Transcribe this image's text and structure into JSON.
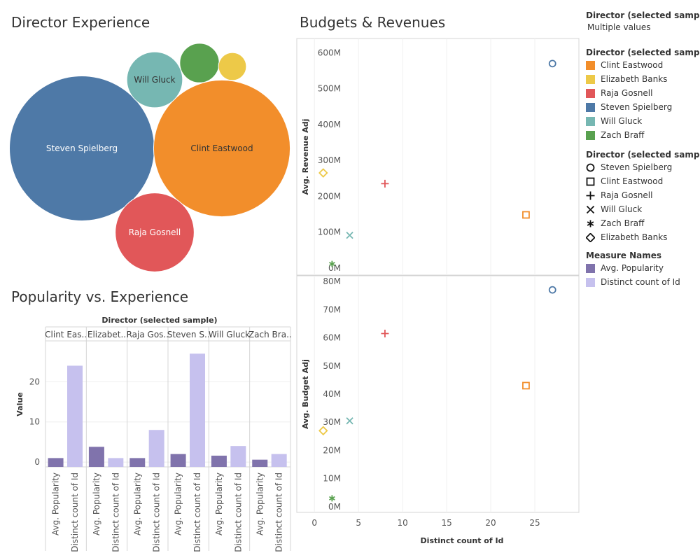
{
  "titles": {
    "bubbles": "Director Experience",
    "scatter": "Budgets & Revenues",
    "bars": "Popularity vs. Experience"
  },
  "colors": {
    "Clint Eastwood": "#F28E2B",
    "Elizabeth Banks": "#EDC948",
    "Raja Gosnell": "#E15759",
    "Steven Spielberg": "#4E79A7",
    "Will Gluck": "#76B7B2",
    "Zach Braff": "#59A14F",
    "Avg. Popularity": "#8073AC",
    "Distinct count of Id": "#C6C1EE"
  },
  "legends": {
    "filter_title": "Director (selected sample)",
    "filter_value": "Multiple values",
    "color_title": "Director (selected sample)",
    "color_items": [
      {
        "label": "Clint Eastwood",
        "color": "#F28E2B"
      },
      {
        "label": "Elizabeth Banks",
        "color": "#EDC948"
      },
      {
        "label": "Raja Gosnell",
        "color": "#E15759"
      },
      {
        "label": "Steven Spielberg",
        "color": "#4E79A7"
      },
      {
        "label": "Will Gluck",
        "color": "#76B7B2"
      },
      {
        "label": "Zach Braff",
        "color": "#59A14F"
      }
    ],
    "shape_title": "Director (selected sample)",
    "shape_items": [
      {
        "label": "Steven Spielberg",
        "shape": "circle"
      },
      {
        "label": "Clint Eastwood",
        "shape": "square"
      },
      {
        "label": "Raja Gosnell",
        "shape": "plus"
      },
      {
        "label": "Will Gluck",
        "shape": "cross"
      },
      {
        "label": "Zach Braff",
        "shape": "asterisk"
      },
      {
        "label": "Elizabeth Banks",
        "shape": "diamond"
      }
    ],
    "measure_title": "Measure Names",
    "measure_items": [
      {
        "label": "Avg. Popularity",
        "color": "#8073AC"
      },
      {
        "label": "Distinct count of Id",
        "color": "#C6C1EE"
      }
    ]
  },
  "chart_data": [
    {
      "type": "bubble",
      "title": "Director Experience",
      "measure": "Distinct count of Id",
      "bubbles": [
        {
          "name": "Steven Spielberg",
          "label": "Steven Spielberg",
          "value": 27,
          "color": "#4E79A7"
        },
        {
          "name": "Clint Eastwood",
          "label": "Clint Eastwood",
          "value": 24,
          "color": "#F28E2B"
        },
        {
          "name": "Raja Gosnell",
          "label": "Raja Gosnell",
          "value": 8,
          "color": "#E15759"
        },
        {
          "name": "Will Gluck",
          "label": "Will Gluck",
          "value": 4,
          "color": "#76B7B2"
        },
        {
          "name": "Zach Braff",
          "label": "",
          "value": 2,
          "color": "#59A14F"
        },
        {
          "name": "Elizabeth Banks",
          "label": "",
          "value": 1,
          "color": "#EDC948"
        }
      ]
    },
    {
      "type": "scatter",
      "title": "Budgets & Revenues",
      "xlabel": "Distinct count of Id",
      "xlim": [
        -2,
        30
      ],
      "xticks": [
        0,
        5,
        10,
        15,
        20,
        25
      ],
      "panels": [
        {
          "ylabel": "Avg. Revenue Adj",
          "ylim": [
            -20000000,
            640000000
          ],
          "yticks": [
            0,
            100000000,
            200000000,
            300000000,
            400000000,
            500000000,
            600000000
          ],
          "yticklabels": [
            "0M",
            "100M",
            "200M",
            "300M",
            "400M",
            "500M",
            "600M"
          ]
        },
        {
          "ylabel": "Avg. Budget Adj",
          "ylim": [
            -2000000,
            82000000
          ],
          "yticks": [
            0,
            10000000,
            20000000,
            30000000,
            40000000,
            50000000,
            60000000,
            70000000,
            80000000
          ],
          "yticklabels": [
            "0M",
            "10M",
            "20M",
            "30M",
            "40M",
            "50M",
            "60M",
            "70M",
            "80M"
          ]
        }
      ],
      "points": [
        {
          "name": "Steven Spielberg",
          "shape": "circle",
          "color": "#4E79A7",
          "x": 27,
          "revenue": 570000000,
          "budget": 77000000
        },
        {
          "name": "Clint Eastwood",
          "shape": "square",
          "color": "#F28E2B",
          "x": 24,
          "revenue": 148000000,
          "budget": 43000000
        },
        {
          "name": "Raja Gosnell",
          "shape": "plus",
          "color": "#E15759",
          "x": 8,
          "revenue": 235000000,
          "budget": 61500000
        },
        {
          "name": "Will Gluck",
          "shape": "cross",
          "color": "#76B7B2",
          "x": 4,
          "revenue": 91000000,
          "budget": 30500000
        },
        {
          "name": "Zach Braff",
          "shape": "asterisk",
          "color": "#59A14F",
          "x": 2,
          "revenue": 11000000,
          "budget": 3000000
        },
        {
          "name": "Elizabeth Banks",
          "shape": "diamond",
          "color": "#EDC948",
          "x": 1,
          "revenue": 265000000,
          "budget": 27000000
        }
      ]
    },
    {
      "type": "bar",
      "title": "Popularity vs. Experience",
      "header": "Director (selected sample)",
      "ylabel": "Value",
      "ylim": [
        -1.2,
        30
      ],
      "yticks": [
        0,
        10,
        20
      ],
      "measures": [
        "Avg. Popularity",
        "Distinct count of Id"
      ],
      "groups": [
        {
          "name": "Clint Eastwood",
          "label": "Clint Eas..",
          "values": [
            1,
            24
          ]
        },
        {
          "name": "Elizabeth Banks",
          "label": "Elizabet..",
          "values": [
            3.8,
            1
          ]
        },
        {
          "name": "Raja Gosnell",
          "label": "Raja Gos..",
          "values": [
            1,
            8
          ]
        },
        {
          "name": "Steven Spielberg",
          "label": "Steven S..",
          "values": [
            2,
            27
          ]
        },
        {
          "name": "Will Gluck",
          "label": "Will Gluck",
          "values": [
            1.6,
            4
          ]
        },
        {
          "name": "Zach Braff",
          "label": "Zach Bra..",
          "values": [
            0.6,
            2
          ]
        }
      ]
    }
  ]
}
